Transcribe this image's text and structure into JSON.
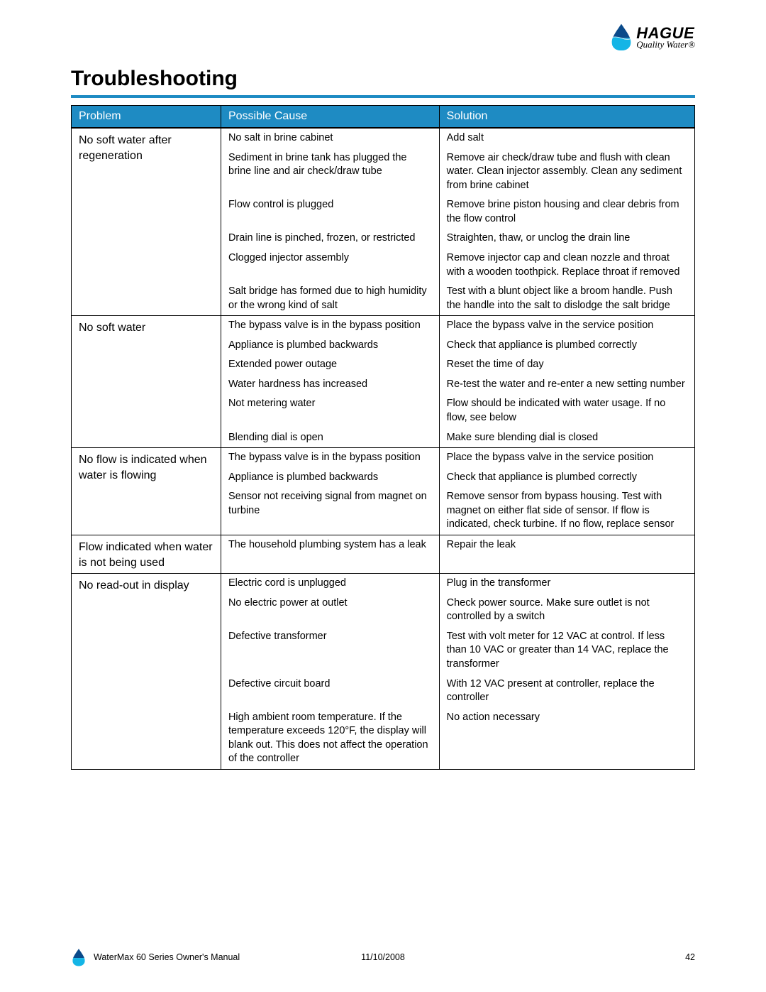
{
  "brand": {
    "name": "HAGUE",
    "tagline": "Quality Water",
    "reg_mark": "®",
    "drop_fill_top": "#0a4a8a",
    "drop_fill_bottom": "#14b5e6"
  },
  "page": {
    "title": "Troubleshooting",
    "title_fontsize": 30,
    "rule_color": "#1e8bc3"
  },
  "table": {
    "header_bg": "#1e8bc3",
    "header_fg": "#ffffff",
    "border_color": "#000000",
    "columns": [
      "Problem",
      "Possible Cause",
      "Solution"
    ],
    "sections": [
      {
        "problem": "No soft water after regeneration",
        "rows": [
          {
            "cause": "No salt in brine cabinet",
            "solution": "Add salt"
          },
          {
            "cause": "Sediment in brine tank has plugged the brine line and air check/draw tube",
            "solution": "Remove air check/draw tube and flush with clean water. Clean injector assembly. Clean any sediment from brine cabinet"
          },
          {
            "cause": "Flow control is plugged",
            "solution": "Remove brine piston housing and clear debris from the flow control"
          },
          {
            "cause": "Drain line is pinched, frozen, or restricted",
            "solution": "Straighten, thaw, or unclog the drain line"
          },
          {
            "cause": "Clogged injector assembly",
            "solution": "Remove injector cap and clean nozzle and throat with a wooden toothpick. Replace throat if removed"
          },
          {
            "cause": "Salt bridge has formed due to high humidity or the wrong kind of salt",
            "solution": "Test with a blunt object like a broom handle. Push the handle into the salt to dislodge the salt bridge"
          }
        ]
      },
      {
        "problem": "No soft water",
        "rows": [
          {
            "cause": "The bypass valve is in the bypass position",
            "solution": "Place the bypass valve in the service position"
          },
          {
            "cause": "Appliance is plumbed backwards",
            "solution": "Check that appliance is plumbed correctly"
          },
          {
            "cause": "Extended power outage",
            "solution": "Reset the time of day"
          },
          {
            "cause": "Water hardness has increased",
            "solution": "Re-test the water and re-enter a new setting number"
          },
          {
            "cause": "Not metering water",
            "solution": "Flow should be indicated with water usage. If no flow, see below"
          },
          {
            "cause": "Blending dial is open",
            "solution": "Make sure blending dial is closed"
          }
        ]
      },
      {
        "problem": "No flow is indicated when water is flowing",
        "rows": [
          {
            "cause": "The bypass valve is in the bypass position",
            "solution": "Place the bypass valve in the service position"
          },
          {
            "cause": "Appliance is plumbed backwards",
            "solution": "Check that appliance is plumbed correctly"
          },
          {
            "cause": "Sensor not receiving signal from magnet on turbine",
            "solution": "Remove sensor from bypass housing. Test with magnet on either flat side of sensor. If flow is indicated, check turbine. If no flow, replace sensor"
          }
        ]
      },
      {
        "problem": "Flow indicated when water is not being used",
        "rows": [
          {
            "cause": "The household plumbing system has a leak",
            "solution": "Repair the leak"
          }
        ]
      },
      {
        "problem": "No read-out in display",
        "rows": [
          {
            "cause": "Electric cord is unplugged",
            "solution": "Plug in the transformer"
          },
          {
            "cause": "No electric power at outlet",
            "solution": "Check power source. Make sure outlet is not controlled by a switch"
          },
          {
            "cause": "Defective transformer",
            "solution": "Test with volt meter for 12 VAC at control. If less than 10 VAC or greater than 14 VAC, replace the transformer"
          },
          {
            "cause": "Defective circuit board",
            "solution": "With 12 VAC present at controller, replace the controller"
          },
          {
            "cause": "High ambient room temperature. If the temperature exceeds 120°F, the display will blank out. This does not affect the operation of the controller",
            "solution": "No action necessary"
          }
        ]
      }
    ]
  },
  "footer": {
    "manual": "WaterMax 60 Series Owner's Manual",
    "date": "11/10/2008",
    "page_number": "42"
  }
}
